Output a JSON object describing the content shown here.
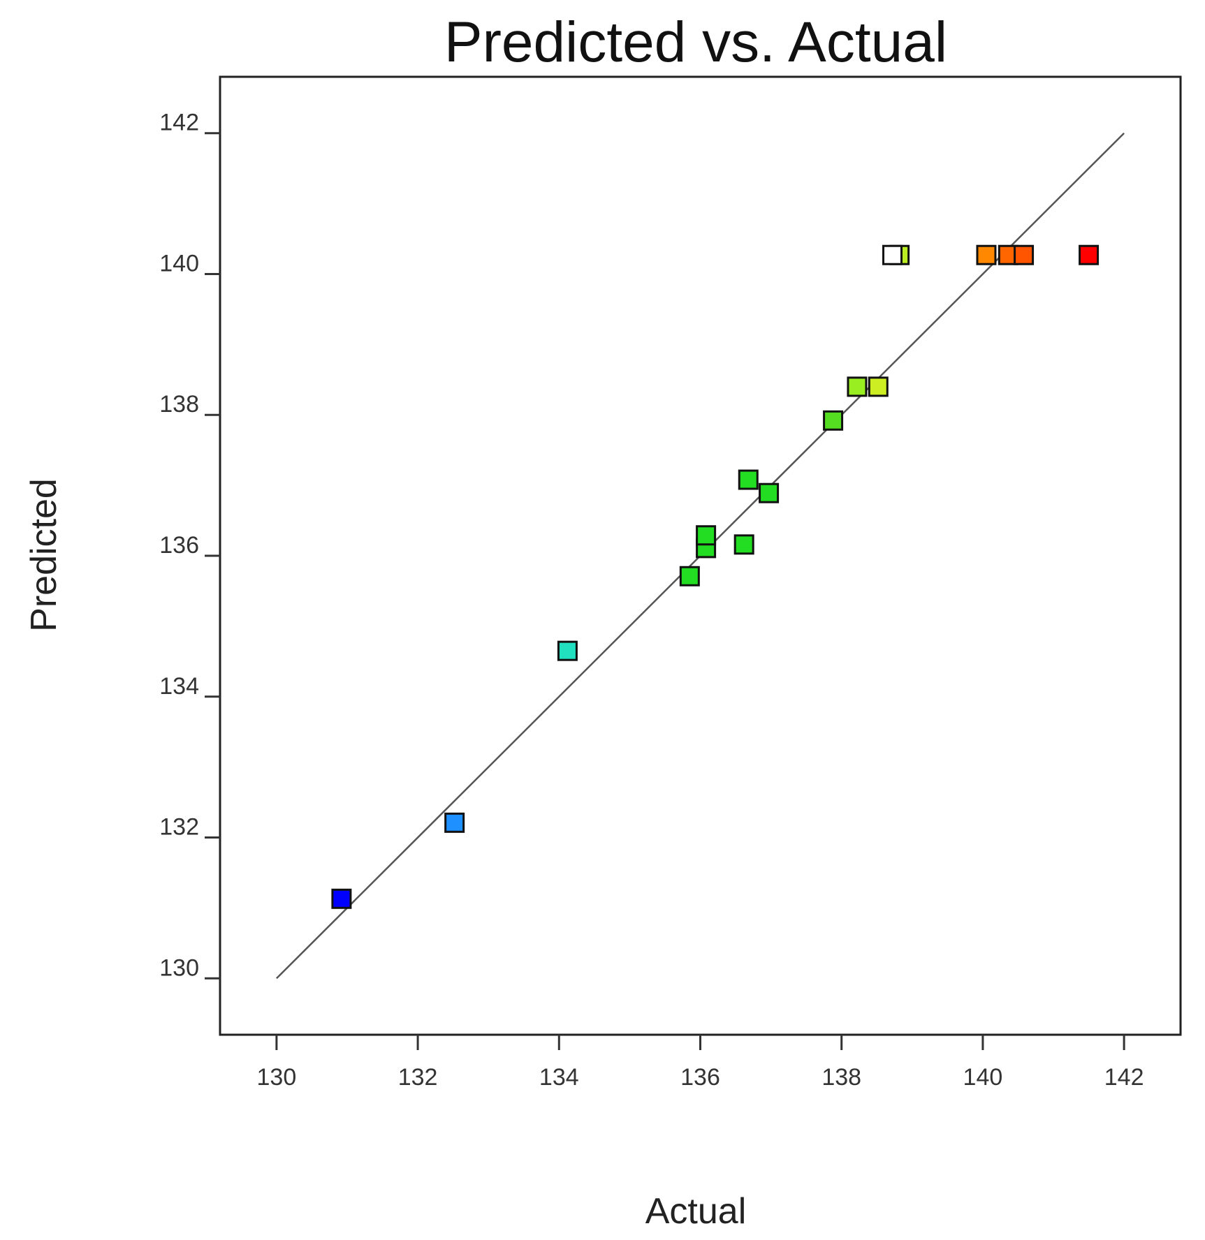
{
  "chart_data": {
    "type": "scatter",
    "title": "Predicted vs. Actual",
    "xlabel": "Actual",
    "ylabel": "Predicted",
    "xlim": [
      129.2,
      142.8
    ],
    "ylim": [
      129.2,
      142.8
    ],
    "x_ticks": [
      130,
      132,
      134,
      136,
      138,
      140,
      142
    ],
    "y_ticks": [
      130,
      132,
      134,
      136,
      138,
      140,
      142
    ],
    "x_tick_labels": [
      "130",
      "132",
      "134",
      "136",
      "138",
      "140",
      "142"
    ],
    "y_tick_labels": [
      "130",
      "132",
      "134",
      "136",
      "138",
      "140",
      "142"
    ],
    "grid": false,
    "legend": "none",
    "reference_line": {
      "from": [
        130,
        130
      ],
      "to": [
        142,
        142
      ]
    },
    "points": [
      {
        "x": 130.92,
        "y": 131.13,
        "color": "#0000ff"
      },
      {
        "x": 132.52,
        "y": 132.21,
        "color": "#1e90ff"
      },
      {
        "x": 134.12,
        "y": 134.65,
        "color": "#20e0c0"
      },
      {
        "x": 135.85,
        "y": 135.71,
        "color": "#22dd22"
      },
      {
        "x": 136.08,
        "y": 136.11,
        "color": "#22dd22"
      },
      {
        "x": 136.08,
        "y": 136.29,
        "color": "#22dd22"
      },
      {
        "x": 136.62,
        "y": 136.16,
        "color": "#22dd22"
      },
      {
        "x": 136.68,
        "y": 137.08,
        "color": "#22dd22"
      },
      {
        "x": 136.97,
        "y": 136.89,
        "color": "#22dd22"
      },
      {
        "x": 137.88,
        "y": 137.92,
        "color": "#55dd22"
      },
      {
        "x": 138.22,
        "y": 138.4,
        "color": "#99ee22"
      },
      {
        "x": 138.52,
        "y": 138.4,
        "color": "#ccee22"
      },
      {
        "x": 138.82,
        "y": 140.27,
        "color": "#bbee22"
      },
      {
        "x": 138.72,
        "y": 140.27,
        "color": "#ffffff"
      },
      {
        "x": 140.05,
        "y": 140.27,
        "color": "#ff8800"
      },
      {
        "x": 140.36,
        "y": 140.27,
        "color": "#ff6600"
      },
      {
        "x": 140.58,
        "y": 140.27,
        "color": "#ff5500"
      },
      {
        "x": 141.5,
        "y": 140.27,
        "color": "#ff0000"
      }
    ]
  }
}
